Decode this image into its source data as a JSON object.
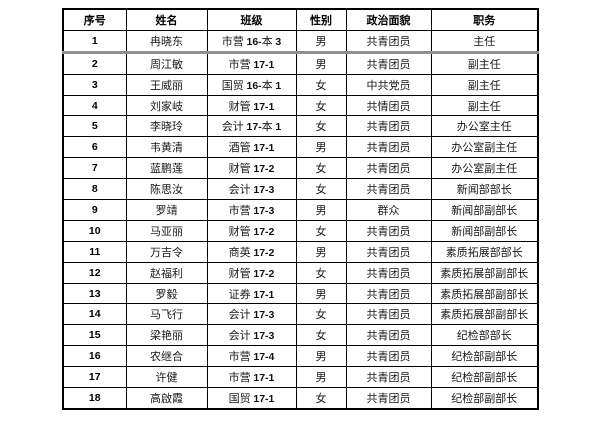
{
  "table": {
    "headers": [
      "序号",
      "姓名",
      "班级",
      "性别",
      "政治面貌",
      "职务"
    ],
    "rows": [
      [
        "1",
        "冉晓东",
        "市营 16-本 3",
        "男",
        "共青团员",
        "主任"
      ],
      [
        "2",
        "周江敏",
        "市营 17-1",
        "男",
        "共青团员",
        "副主任"
      ],
      [
        "3",
        "王威丽",
        "国贸 16-本 1",
        "女",
        "中共党员",
        "副主任"
      ],
      [
        "4",
        "刘家岐",
        "财管 17-1",
        "女",
        "共情团员",
        "副主任"
      ],
      [
        "5",
        "李晓玲",
        "会计 17-本 1",
        "女",
        "共青团员",
        "办公室主任"
      ],
      [
        "6",
        "韦黄清",
        "酒管 17-1",
        "男",
        "共青团员",
        "办公室副主任"
      ],
      [
        "7",
        "蓝鹏莲",
        "财管 17-2",
        "女",
        "共青团员",
        "办公室副主任"
      ],
      [
        "8",
        "陈思汝",
        "会计 17-3",
        "女",
        "共青团员",
        "新闻部部长"
      ],
      [
        "9",
        "罗靖",
        "市营 17-3",
        "男",
        "群众",
        "新闻部副部长"
      ],
      [
        "10",
        "马亚丽",
        "财管 17-2",
        "女",
        "共青团员",
        "新闻部副部长"
      ],
      [
        "11",
        "万吉令",
        "商英 17-2",
        "男",
        "共青团员",
        "素质拓展部部长"
      ],
      [
        "12",
        "赵福利",
        "财管 17-2",
        "女",
        "共青团员",
        "素质拓展部副部长"
      ],
      [
        "13",
        "罗毅",
        "证券 17-1",
        "男",
        "共青团员",
        "素质拓展部副部长"
      ],
      [
        "14",
        "马飞行",
        "会计 17-3",
        "女",
        "共青团员",
        "素质拓展部副部长"
      ],
      [
        "15",
        "梁艳丽",
        "会计 17-3",
        "女",
        "共青团员",
        "纪检部部长"
      ],
      [
        "16",
        "农继合",
        "市营 17-4",
        "男",
        "共青团员",
        "纪检部副部长"
      ],
      [
        "17",
        "许健",
        "市营 17-1",
        "男",
        "共青团员",
        "纪检部副部长"
      ],
      [
        "18",
        "高啟霞",
        "国贸 17-1",
        "女",
        "共青团员",
        "纪检部副部长"
      ]
    ]
  },
  "colors": {
    "border": "#000000",
    "text": "#181818",
    "thick_divider": "#8f8f8f",
    "background": "#ffffff"
  }
}
